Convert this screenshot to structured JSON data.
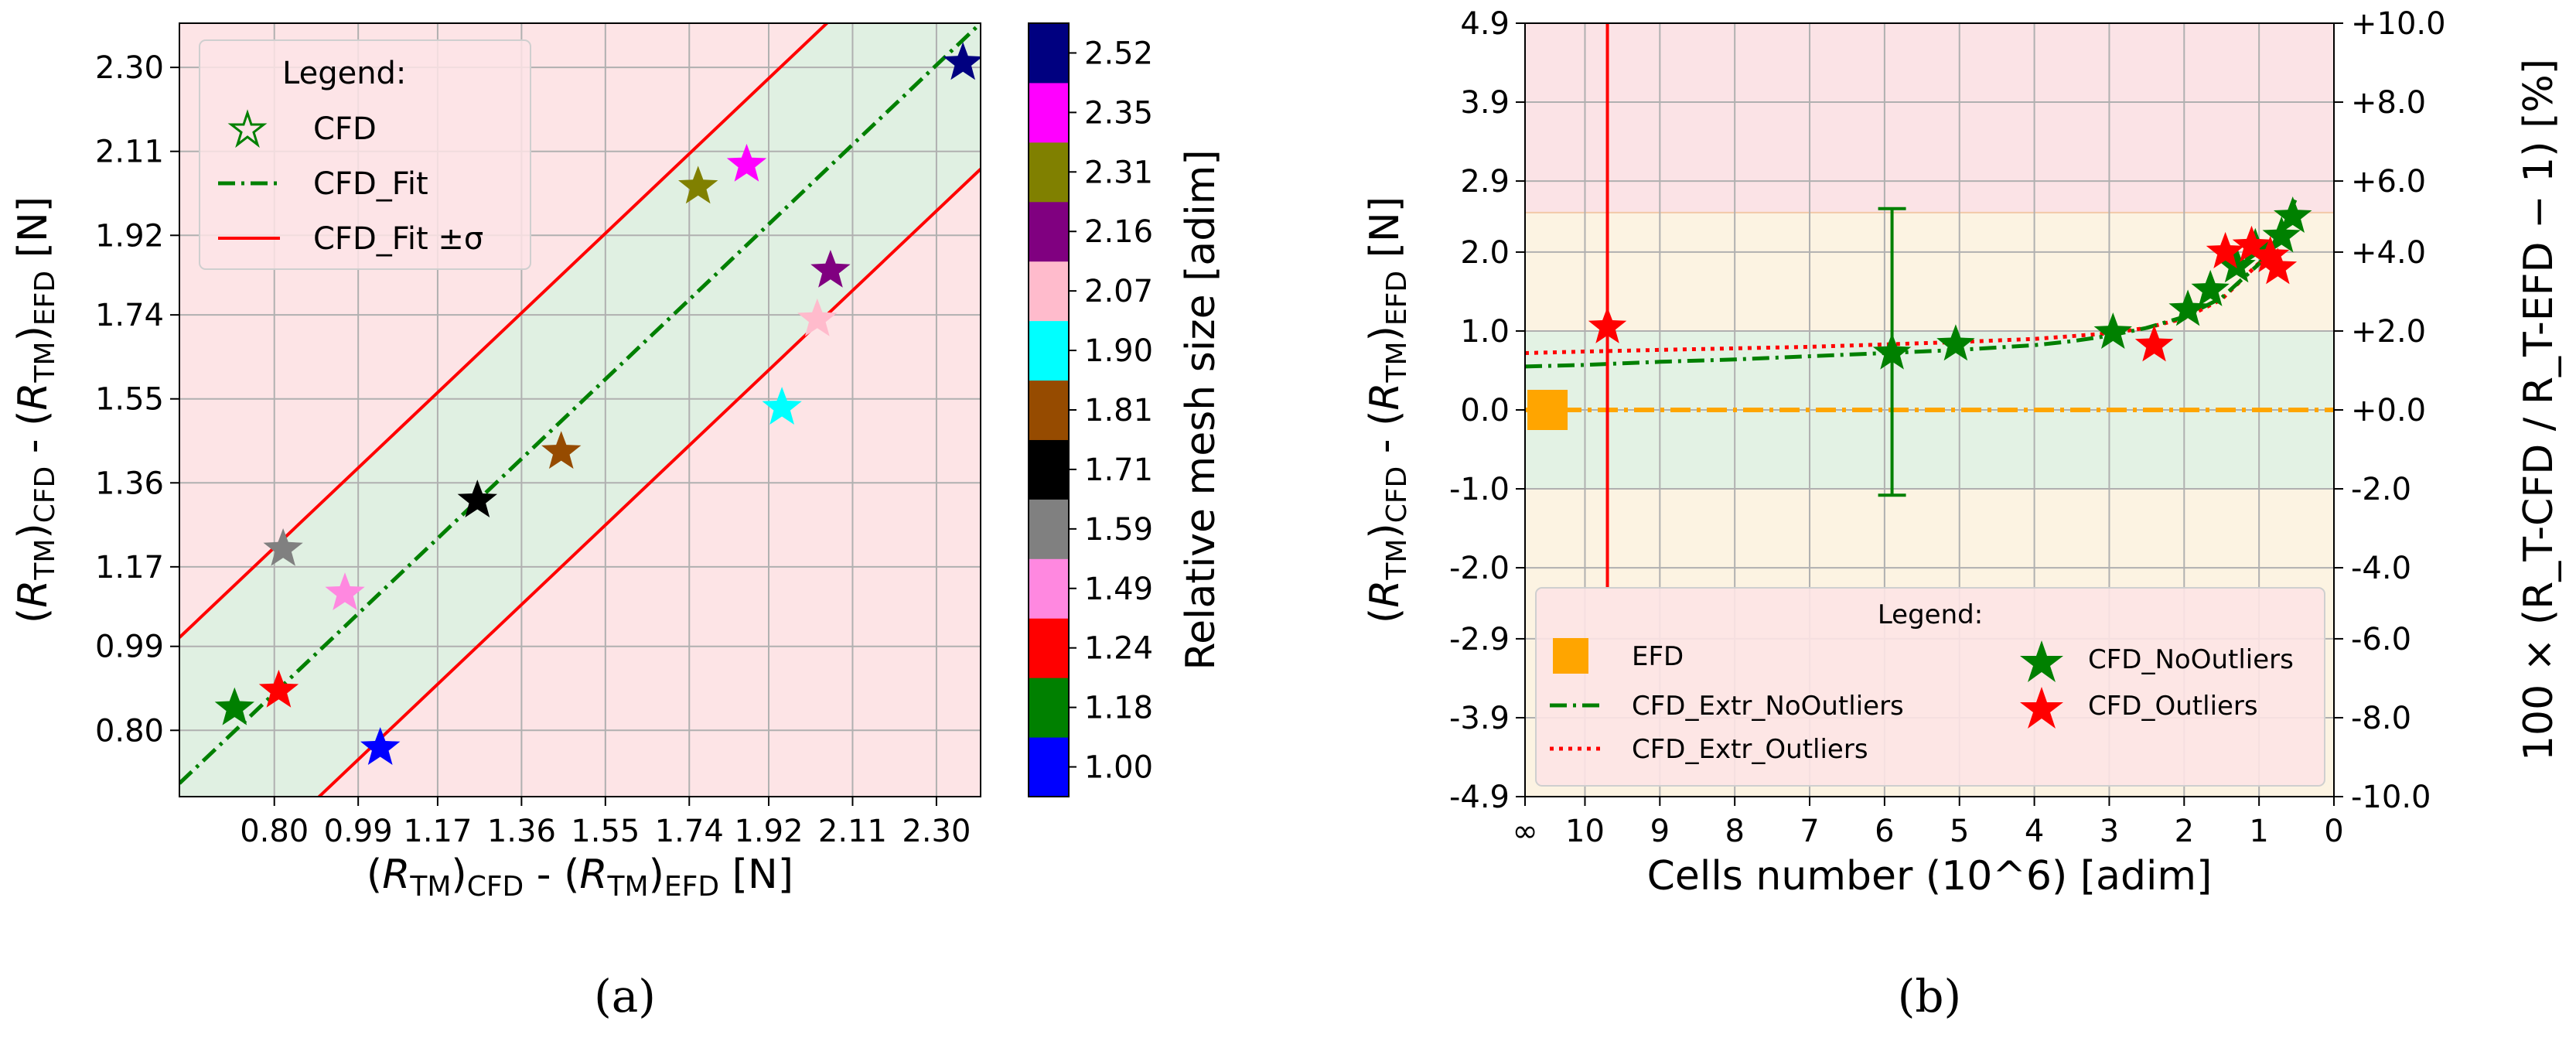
{
  "panels": {
    "a": {
      "caption": "(a)"
    },
    "b": {
      "caption": "(b)"
    }
  },
  "chart_data": [
    {
      "type": "scatter",
      "panel": "a",
      "xlabel": "(R_TM)_CFD - (R_TM)_EFD [N]",
      "ylabel": "(R_TM)_CFD - (R_TM)_EFD [N]",
      "xlim": [
        0.585,
        2.4
      ],
      "ylim": [
        0.65,
        2.4
      ],
      "xticks": [
        "0.80",
        "0.99",
        "1.17",
        "1.36",
        "1.55",
        "1.74",
        "1.92",
        "2.11",
        "2.30"
      ],
      "yticks": [
        "0.80",
        "0.99",
        "1.17",
        "1.36",
        "1.55",
        "1.74",
        "1.92",
        "2.11",
        "2.30"
      ],
      "grid": true,
      "legend": {
        "title": "Legend:",
        "placement": "top-left",
        "entries": [
          "CFD",
          "CFD_Fit",
          "CFD_Fit ±σ"
        ]
      },
      "fit": {
        "x": [
          0.585,
          2.4
        ],
        "y": [
          0.68,
          2.4
        ],
        "sigma": 0.33
      },
      "points": [
        {
          "x": 0.71,
          "y": 0.85,
          "color": "#008000",
          "mesh": "1.18"
        },
        {
          "x": 0.81,
          "y": 0.89,
          "color": "#ff0000",
          "mesh": "1.24"
        },
        {
          "x": 0.82,
          "y": 1.21,
          "color": "#808080",
          "mesh": "1.59"
        },
        {
          "x": 0.96,
          "y": 1.11,
          "color": "#ff88e0",
          "mesh": "1.49"
        },
        {
          "x": 1.04,
          "y": 0.76,
          "color": "#0000ff",
          "mesh": "1.00"
        },
        {
          "x": 1.26,
          "y": 1.32,
          "color": "#000000",
          "mesh": "1.71"
        },
        {
          "x": 1.45,
          "y": 1.43,
          "color": "#964b00",
          "mesh": "1.81"
        },
        {
          "x": 1.76,
          "y": 2.03,
          "color": "#808000",
          "mesh": "2.31"
        },
        {
          "x": 1.87,
          "y": 2.08,
          "color": "#ff00ff",
          "mesh": "2.35"
        },
        {
          "x": 1.95,
          "y": 1.53,
          "color": "#00ffff",
          "mesh": "1.90"
        },
        {
          "x": 2.03,
          "y": 1.73,
          "color": "#ffbbcc",
          "mesh": "2.07"
        },
        {
          "x": 2.06,
          "y": 1.84,
          "color": "#800080",
          "mesh": "2.16"
        },
        {
          "x": 2.36,
          "y": 2.31,
          "color": "#000080",
          "mesh": "2.52"
        }
      ],
      "colorbar": {
        "label": "Relative mesh size [adim]",
        "levels": [
          {
            "label": "1.00",
            "color": "#0000ff"
          },
          {
            "label": "1.18",
            "color": "#008000"
          },
          {
            "label": "1.24",
            "color": "#ff0000"
          },
          {
            "label": "1.49",
            "color": "#ff88e0"
          },
          {
            "label": "1.59",
            "color": "#808080"
          },
          {
            "label": "1.71",
            "color": "#000000"
          },
          {
            "label": "1.81",
            "color": "#964b00"
          },
          {
            "label": "1.90",
            "color": "#00ffff"
          },
          {
            "label": "2.07",
            "color": "#ffbbcc"
          },
          {
            "label": "2.16",
            "color": "#800080"
          },
          {
            "label": "2.31",
            "color": "#808000"
          },
          {
            "label": "2.35",
            "color": "#ff00ff"
          },
          {
            "label": "2.52",
            "color": "#000080"
          }
        ]
      }
    },
    {
      "type": "scatter",
      "panel": "b",
      "xlabel": "Cells number (10^6) [adim]",
      "ylabel": "(R_TM)_CFD - (R_TM)_EFD [N]",
      "y2label": "100 × (R_T-CFD / R_T-EFD − 1) [%]",
      "xlim": [
        10.8,
        0
      ],
      "ylim": [
        -4.9,
        4.9
      ],
      "xticks": [
        {
          "v": 10.8,
          "label": "∞"
        },
        {
          "v": 10,
          "label": "10"
        },
        {
          "v": 9,
          "label": "9"
        },
        {
          "v": 8,
          "label": "8"
        },
        {
          "v": 7,
          "label": "7"
        },
        {
          "v": 6,
          "label": "6"
        },
        {
          "v": 5,
          "label": "5"
        },
        {
          "v": 4,
          "label": "4"
        },
        {
          "v": 3,
          "label": "3"
        },
        {
          "v": 2,
          "label": "2"
        },
        {
          "v": 1,
          "label": "1"
        },
        {
          "v": 0,
          "label": "0"
        }
      ],
      "yticks": [
        {
          "v": 4.9,
          "label": "4.9"
        },
        {
          "v": 3.9,
          "label": "3.9"
        },
        {
          "v": 2.9,
          "label": "2.9"
        },
        {
          "v": 2.0,
          "label": "2.0"
        },
        {
          "v": 1.0,
          "label": "1.0"
        },
        {
          "v": 0.0,
          "label": "0.0"
        },
        {
          "v": -1.0,
          "label": "-1.0"
        },
        {
          "v": -2.0,
          "label": "-2.0"
        },
        {
          "v": -2.9,
          "label": "-2.9"
        },
        {
          "v": -3.9,
          "label": "-3.9"
        },
        {
          "v": -4.9,
          "label": "-4.9"
        }
      ],
      "y2ticks": [
        "+10.0",
        "+8.0",
        "+6.0",
        "+4.0",
        "+2.0",
        "+0.0",
        "-2.0",
        "-4.0",
        "-6.0",
        "-8.0",
        "-10.0"
      ],
      "bands": [
        {
          "y0": 2.5,
          "y1": 4.9,
          "color": "#fbe3e6"
        },
        {
          "y0": 1.0,
          "y1": 2.5,
          "color": "#fcf3e2"
        },
        {
          "y0": -1.0,
          "y1": 1.0,
          "color": "#e3f2e4"
        },
        {
          "y0": -4.9,
          "y1": -1.0,
          "color": "#fcf3e2"
        }
      ],
      "legend": {
        "title": "Legend:",
        "placement": "bottom-left",
        "entries": [
          "EFD",
          "CFD_Extr_NoOutliers",
          "CFD_Extr_Outliers",
          "CFD_NoOutliers",
          "CFD_Outliers"
        ]
      },
      "efd": {
        "x": 10.5,
        "y": 0.0
      },
      "no_outliers": [
        {
          "x": 5.9,
          "y": 0.72
        },
        {
          "x": 5.05,
          "y": 0.83
        },
        {
          "x": 2.95,
          "y": 0.98
        },
        {
          "x": 1.95,
          "y": 1.27
        },
        {
          "x": 1.65,
          "y": 1.52
        },
        {
          "x": 1.3,
          "y": 1.82
        },
        {
          "x": 1.05,
          "y": 2.05
        },
        {
          "x": 0.7,
          "y": 2.2
        },
        {
          "x": 0.55,
          "y": 2.45
        }
      ],
      "outliers": [
        {
          "x": 9.7,
          "y": 1.05
        },
        {
          "x": 2.4,
          "y": 0.82
        },
        {
          "x": 1.45,
          "y": 2.0
        },
        {
          "x": 1.1,
          "y": 2.08
        },
        {
          "x": 0.85,
          "y": 1.95
        },
        {
          "x": 0.75,
          "y": 1.8
        }
      ],
      "no_outliers_errorbar": {
        "x": 5.9,
        "y": 0.72,
        "ylow": -1.08,
        "yhigh": 2.55
      },
      "outliers_vline": {
        "x": 9.7,
        "ylow": -2.25,
        "yhigh": 4.9
      },
      "extr_no_outliers": {
        "x": [
          10.8,
          10,
          9,
          8,
          7,
          6,
          5,
          4,
          3.5,
          3,
          2.5,
          2,
          1.5,
          1,
          0.7,
          0.5
        ],
        "y": [
          0.55,
          0.57,
          0.61,
          0.64,
          0.68,
          0.72,
          0.76,
          0.82,
          0.87,
          0.94,
          1.04,
          1.18,
          1.42,
          1.85,
          2.25,
          2.7
        ]
      },
      "extr_outliers": {
        "x": [
          10.8,
          10,
          9,
          8,
          7,
          6,
          5,
          4,
          3,
          2.5,
          2,
          1.5,
          1,
          0.7,
          0.5
        ],
        "y": [
          0.72,
          0.74,
          0.76,
          0.78,
          0.8,
          0.83,
          0.86,
          0.9,
          0.97,
          1.04,
          1.16,
          1.4,
          1.86,
          2.25,
          2.6
        ]
      }
    }
  ]
}
